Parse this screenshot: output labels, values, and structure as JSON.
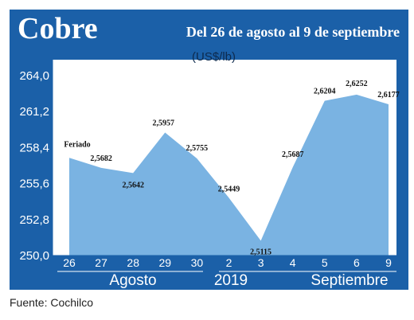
{
  "chart_data": {
    "type": "area",
    "title": "Cobre",
    "subtitle": "Del 26 de agosto al 9 de septiembre",
    "ylabel": "(US$/lb)",
    "ylim": [
      250.0,
      264.0
    ],
    "yticks": [
      "250,0",
      "252,8",
      "255,6",
      "258,4",
      "261,2",
      "264,0"
    ],
    "categories": [
      "26",
      "27",
      "28",
      "29",
      "30",
      "2",
      "3",
      "4",
      "5",
      "6",
      "9"
    ],
    "values": [
      257.6,
      256.82,
      256.42,
      259.57,
      257.55,
      254.49,
      251.15,
      256.87,
      262.04,
      262.52,
      261.77
    ],
    "data_labels": [
      "Feriado",
      "2,5682",
      "2,5642",
      "2,5957",
      "2,5755",
      "2,5449",
      "2,5115",
      "2,5687",
      "2,6204",
      "2,6252",
      "2,6177"
    ],
    "groups": [
      "Agosto",
      "2019",
      "Septiembre"
    ],
    "fill_color": "#7ab3e2",
    "panel_color": "#1b60a8",
    "grid": false
  },
  "footer": {
    "source": "Fuente: Cochilco"
  }
}
